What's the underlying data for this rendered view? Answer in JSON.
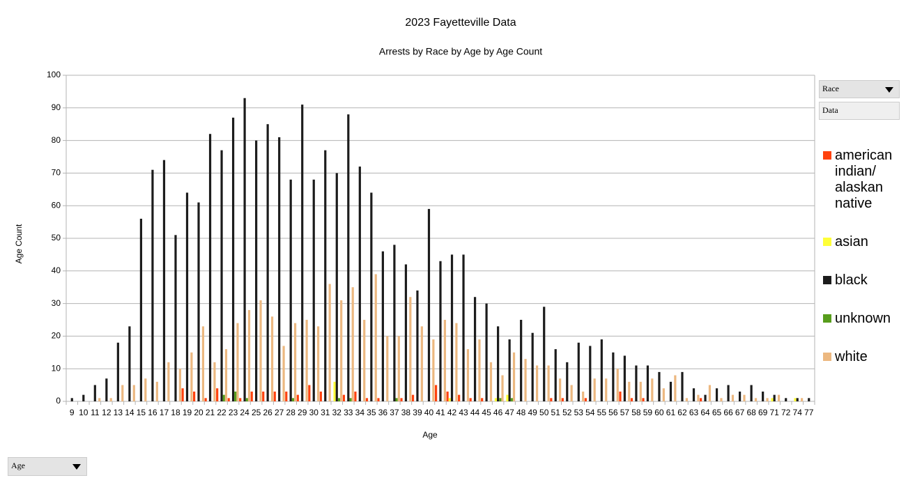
{
  "chart_data": {
    "type": "bar",
    "title": "2023 Fayetteville Data",
    "subtitle": "Arrests by Race by Age by Age Count",
    "x_label": "Age",
    "y_label": "Age Count",
    "categories": [
      "9",
      "10",
      "11",
      "12",
      "13",
      "14",
      "15",
      "16",
      "17",
      "18",
      "19",
      "20",
      "21",
      "22",
      "23",
      "24",
      "25",
      "26",
      "27",
      "28",
      "29",
      "30",
      "31",
      "32",
      "33",
      "34",
      "35",
      "36",
      "37",
      "38",
      "39",
      "40",
      "41",
      "42",
      "43",
      "44",
      "45",
      "46",
      "47",
      "48",
      "49",
      "50",
      "51",
      "52",
      "53",
      "54",
      "55",
      "56",
      "57",
      "58",
      "59",
      "60",
      "61",
      "62",
      "63",
      "64",
      "65",
      "66",
      "67",
      "68",
      "69",
      "71",
      "72",
      "74",
      "77"
    ],
    "series": [
      {
        "name": "american indian/ alaskan native",
        "color": "#ff420e",
        "values": [
          0,
          0,
          0,
          0,
          0,
          0,
          0,
          0,
          0,
          0,
          4,
          3,
          1,
          4,
          1,
          1,
          3,
          3,
          3,
          3,
          2,
          5,
          3,
          0,
          2,
          3,
          1,
          1,
          0,
          1,
          2,
          0,
          5,
          3,
          2,
          1,
          1,
          0,
          0,
          0,
          0,
          0,
          1,
          1,
          0,
          1,
          0,
          0,
          3,
          1,
          1,
          0,
          0,
          0,
          0,
          1,
          0,
          0,
          0,
          0,
          0,
          0,
          0,
          0,
          0
        ]
      },
      {
        "name": "asian",
        "color": "#ffff38",
        "values": [
          0,
          0,
          0,
          0,
          0,
          0,
          0,
          0,
          0,
          0,
          0,
          0,
          0,
          0,
          0,
          0,
          0,
          0,
          0,
          0,
          0,
          0,
          0,
          6,
          0,
          0,
          0,
          0,
          0,
          0,
          0,
          0,
          0,
          1,
          0,
          0,
          0,
          1,
          2,
          0,
          0,
          0,
          0,
          0,
          0,
          0,
          0,
          0,
          0,
          0,
          0,
          0,
          0,
          0,
          0,
          0,
          0,
          0,
          0,
          0,
          0,
          1,
          0,
          1,
          0
        ]
      },
      {
        "name": "black",
        "color": "#1c1c1c",
        "values": [
          1,
          2,
          5,
          7,
          18,
          23,
          56,
          71,
          74,
          51,
          64,
          61,
          82,
          77,
          87,
          93,
          80,
          85,
          81,
          68,
          91,
          68,
          77,
          70,
          88,
          72,
          64,
          46,
          48,
          42,
          34,
          59,
          43,
          45,
          45,
          32,
          30,
          23,
          19,
          25,
          21,
          29,
          16,
          12,
          18,
          17,
          19,
          15,
          14,
          11,
          11,
          9,
          6,
          9,
          4,
          2,
          4,
          5,
          3,
          5,
          3,
          2,
          1,
          1,
          1
        ]
      },
      {
        "name": "unknown",
        "color": "#579d1c",
        "values": [
          0,
          0,
          0,
          0,
          0,
          0,
          0,
          0,
          0,
          0,
          0,
          0,
          0,
          2,
          3,
          1,
          0,
          0,
          0,
          1,
          0,
          0,
          0,
          1,
          1,
          0,
          0,
          0,
          1,
          0,
          0,
          0,
          0,
          0,
          0,
          0,
          0,
          1,
          1,
          0,
          0,
          0,
          0,
          0,
          0,
          0,
          0,
          0,
          0,
          0,
          0,
          0,
          0,
          0,
          0,
          0,
          0,
          0,
          0,
          0,
          0,
          0,
          0,
          0,
          0
        ]
      },
      {
        "name": "white",
        "color": "#ecb880",
        "values": [
          0,
          0,
          1,
          1,
          5,
          5,
          7,
          6,
          12,
          10,
          15,
          23,
          12,
          16,
          24,
          28,
          31,
          26,
          17,
          24,
          25,
          23,
          36,
          31,
          35,
          25,
          39,
          20,
          20,
          32,
          23,
          19,
          25,
          24,
          16,
          19,
          12,
          8,
          15,
          13,
          11,
          11,
          7,
          5,
          3,
          7,
          7,
          10,
          6,
          6,
          7,
          4,
          8,
          1,
          2,
          5,
          1,
          2,
          2,
          1,
          1,
          2,
          0,
          1,
          0
        ]
      }
    ],
    "ylim": [
      0,
      100
    ],
    "yticks": [
      0,
      10,
      20,
      30,
      40,
      50,
      60,
      70,
      80,
      90,
      100
    ],
    "grid": true
  },
  "controls": {
    "race_field": "Race",
    "data_field": "Data",
    "age_field": "Age"
  }
}
